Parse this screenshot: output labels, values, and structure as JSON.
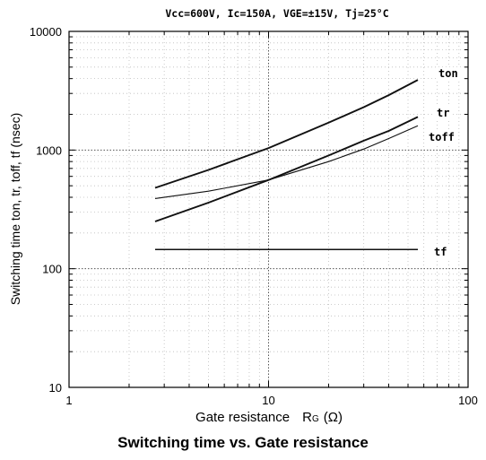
{
  "chart_data": {
    "type": "line",
    "title": "Vcc=600V,  Ic=150A,  VGE=±15V,  Tj=25°C",
    "caption": "Switching time vs. Gate resistance",
    "xlabel": {
      "text": "Gate resistance",
      "symbol_main": "R",
      "symbol_sub": "G",
      "unit": "(Ω)"
    },
    "ylabel": "Switching time   ton, tr, toff, tf (nsec)",
    "xscale": "log",
    "yscale": "log",
    "xlim": [
      1,
      100
    ],
    "ylim": [
      10,
      10000
    ],
    "x_tick_labels": [
      "1",
      "10",
      "100"
    ],
    "y_tick_labels": [
      "10",
      "100",
      "1000",
      "10000"
    ],
    "grid": true,
    "series": [
      {
        "name": "ton",
        "x": [
          2.7,
          5,
          10,
          20,
          30,
          40,
          56
        ],
        "y": [
          480,
          680,
          1040,
          1700,
          2300,
          2900,
          3900
        ]
      },
      {
        "name": "tr",
        "x": [
          2.7,
          5,
          10,
          20,
          30,
          40,
          56
        ],
        "y": [
          250,
          360,
          560,
          900,
          1200,
          1450,
          1900
        ]
      },
      {
        "name": "toff",
        "x": [
          2.7,
          5,
          10,
          20,
          30,
          40,
          56
        ],
        "y": [
          390,
          450,
          560,
          800,
          1020,
          1250,
          1600
        ]
      },
      {
        "name": "tf",
        "x": [
          2.7,
          56
        ],
        "y": [
          145,
          145
        ]
      }
    ]
  }
}
